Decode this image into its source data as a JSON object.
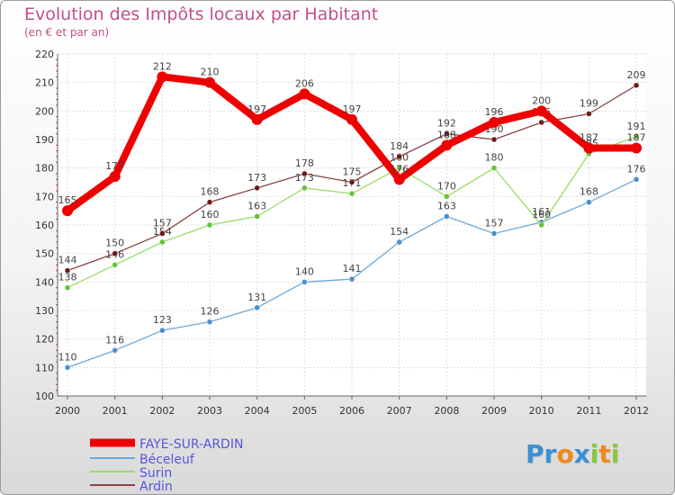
{
  "chart_data": {
    "type": "line",
    "title": "Evolution des Impôts locaux par Habitant",
    "subtitle": "(en € et par an)",
    "xlabel": "",
    "ylabel": "",
    "x": [
      "2000",
      "2001",
      "2002",
      "2003",
      "2004",
      "2005",
      "2006",
      "2007",
      "2008",
      "2009",
      "2010",
      "2011",
      "2012"
    ],
    "ylim": [
      100,
      220
    ],
    "yticks": [
      "100",
      "110",
      "120",
      "130",
      "140",
      "150",
      "160",
      "170",
      "180",
      "190",
      "200",
      "210",
      "220"
    ],
    "grid": true,
    "legend_position": "bottom-left",
    "series": [
      {
        "name": "FAYE-SUR-ARDIN",
        "color": "#ee0000",
        "values": [
          165,
          177,
          212,
          210,
          197,
          206,
          197,
          176,
          188,
          196,
          200,
          187,
          187
        ],
        "labels": [
          "165",
          "177",
          "212",
          "210",
          "197",
          "206",
          "197",
          "176",
          "188",
          "196",
          "200",
          "187",
          "187"
        ]
      },
      {
        "name": "Béceleuf",
        "color": "#6ea8d8",
        "marker": "#4a8fcc",
        "values": [
          110,
          116,
          123,
          126,
          131,
          140,
          141,
          154,
          163,
          157,
          161,
          168,
          176
        ],
        "labels": [
          "110",
          "116",
          "123",
          "126",
          "131",
          "140",
          "141",
          "154",
          "163",
          "157",
          "161",
          "168",
          "176"
        ]
      },
      {
        "name": "Surin",
        "color": "#99dd66",
        "marker": "#66c23a",
        "values": [
          138,
          146,
          154,
          160,
          163,
          173,
          171,
          180,
          170,
          180,
          160,
          185,
          191
        ],
        "labels": [
          "138",
          "146",
          "154",
          "160",
          "163",
          "173",
          "171",
          "180",
          "170",
          "180",
          "160",
          "185",
          "191"
        ]
      },
      {
        "name": "Ardin",
        "color": "#884444",
        "marker": "#6a1a1a",
        "values": [
          144,
          150,
          157,
          168,
          173,
          178,
          175,
          184,
          192,
          190,
          196,
          199,
          209
        ],
        "labels": [
          "144",
          "150",
          "157",
          "168",
          "173",
          "178",
          "175",
          "184",
          "192",
          "190",
          "196",
          "199",
          "209"
        ]
      }
    ]
  },
  "logo": {
    "letters": [
      "P",
      "r",
      "o",
      "x",
      "i",
      "t",
      "i"
    ],
    "colors": [
      "#3a8fd6",
      "#3a8fd6",
      "#f08a1c",
      "#3a8fd6",
      "#8cc63f",
      "#f08a1c",
      "#8cc63f"
    ]
  }
}
